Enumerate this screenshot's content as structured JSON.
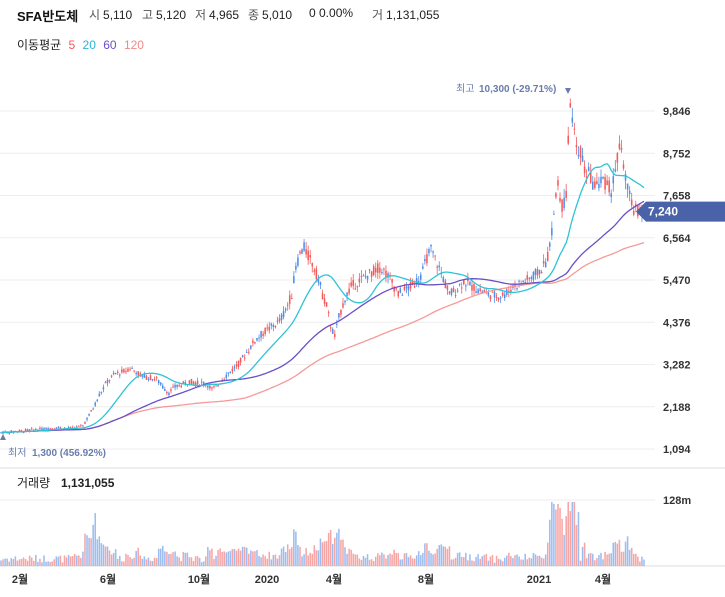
{
  "header": {
    "stock_name": "SFA반도체",
    "open_label": "시",
    "open_value": "5,110",
    "high_label": "고",
    "high_value": "5,120",
    "low_label": "저",
    "low_value": "4,965",
    "close_label": "종",
    "close_value": "5,010",
    "change_value": "0 0.00%",
    "volume_label": "거",
    "volume_value": "1,131,055"
  },
  "ma_legend": {
    "title": "이동평균",
    "items": [
      {
        "label": "5",
        "color": "#f45a5a"
      },
      {
        "label": "20",
        "color": "#29b6d6"
      },
      {
        "label": "60",
        "color": "#6a4fc9"
      },
      {
        "label": "120",
        "color": "#f08a8a"
      }
    ]
  },
  "colors": {
    "up": "#f45a5a",
    "down": "#4d8ee8",
    "ma5": "#f45a5a",
    "ma20": "#2ec4d6",
    "ma60": "#6a4fc9",
    "ma120": "#f59a9a",
    "current_tag": "#4a62a8",
    "annotation": "#6a7cad"
  },
  "chart_data": {
    "type": "candlestick",
    "price_axis": {
      "ticks": [
        "9,846",
        "8,752",
        "7,658",
        "6,564",
        "5,470",
        "4,376",
        "3,282",
        "2,188",
        "1,094"
      ],
      "tick_values": [
        9846,
        8752,
        7658,
        6564,
        5470,
        4376,
        3282,
        2188,
        1094
      ],
      "range": [
        700,
        10500
      ]
    },
    "x_axis": {
      "ticks": [
        "2월",
        "6월",
        "10월",
        "2020",
        "4월",
        "8월",
        "2021",
        "4월"
      ]
    },
    "current_price": {
      "value": 7240,
      "label": "7,240"
    },
    "max_annotation": {
      "label": "최고",
      "value_text": "10,300 (-29.71%)",
      "value": 10300
    },
    "min_annotation": {
      "label": "최저",
      "value_text": "1,300 (456.92%)",
      "value": 1300
    },
    "volume": {
      "title": "거래량",
      "value_text": "1,131,055",
      "axis_tick": "128m",
      "axis_tick_value": 128000000
    },
    "price_path": [
      [
        0,
        1520
      ],
      [
        18,
        1600
      ],
      [
        28,
        1650
      ],
      [
        35,
        1620
      ],
      [
        40,
        1700
      ],
      [
        45,
        2150
      ],
      [
        48,
        2500
      ],
      [
        52,
        2850
      ],
      [
        56,
        3050
      ],
      [
        60,
        3100
      ],
      [
        63,
        3200
      ],
      [
        66,
        3100
      ],
      [
        68,
        3000
      ],
      [
        72,
        2950
      ],
      [
        76,
        2900
      ],
      [
        79,
        2700
      ],
      [
        82,
        2550
      ],
      [
        85,
        2700
      ],
      [
        88,
        2750
      ],
      [
        92,
        2850
      ],
      [
        96,
        2800
      ],
      [
        100,
        2800
      ],
      [
        103,
        2650
      ],
      [
        105,
        2700
      ],
      [
        108,
        2900
      ],
      [
        112,
        3100
      ],
      [
        116,
        3300
      ],
      [
        120,
        3600
      ],
      [
        124,
        3900
      ],
      [
        128,
        4100
      ],
      [
        132,
        4250
      ],
      [
        136,
        4400
      ],
      [
        139,
        4700
      ],
      [
        142,
        5100
      ],
      [
        144,
        5800
      ],
      [
        146,
        6150
      ],
      [
        148,
        6300
      ],
      [
        150,
        6100
      ],
      [
        152,
        5900
      ],
      [
        155,
        5500
      ],
      [
        157,
        5100
      ],
      [
        159,
        4800
      ],
      [
        161,
        4300
      ],
      [
        163,
        4000
      ],
      [
        165,
        4500
      ],
      [
        168,
        5000
      ],
      [
        171,
        5300
      ],
      [
        175,
        5450
      ],
      [
        179,
        5600
      ],
      [
        182,
        5700
      ],
      [
        185,
        5800
      ],
      [
        188,
        5650
      ],
      [
        191,
        5400
      ],
      [
        194,
        5100
      ],
      [
        197,
        5200
      ],
      [
        200,
        5300
      ],
      [
        203,
        5450
      ],
      [
        206,
        5700
      ],
      [
        208,
        6050
      ],
      [
        210,
        6250
      ],
      [
        213,
        5900
      ],
      [
        216,
        5500
      ],
      [
        219,
        5100
      ],
      [
        222,
        5200
      ],
      [
        226,
        5450
      ],
      [
        230,
        5300
      ],
      [
        234,
        5200
      ],
      [
        238,
        5100
      ],
      [
        242,
        5050
      ],
      [
        246,
        5100
      ],
      [
        250,
        5300
      ],
      [
        254,
        5400
      ],
      [
        258,
        5500
      ],
      [
        262,
        5650
      ],
      [
        266,
        5900
      ],
      [
        268,
        6300
      ],
      [
        270,
        7200
      ],
      [
        272,
        8000
      ],
      [
        274,
        7400
      ],
      [
        276,
        7600
      ],
      [
        277,
        9000
      ],
      [
        278,
        10100
      ],
      [
        279,
        9500
      ],
      [
        281,
        8900
      ],
      [
        283,
        8800
      ],
      [
        285,
        8300
      ],
      [
        287,
        8200
      ],
      [
        289,
        8000
      ],
      [
        291,
        7900
      ],
      [
        294,
        8100
      ],
      [
        296,
        7900
      ],
      [
        298,
        7800
      ],
      [
        300,
        8300
      ],
      [
        302,
        8900
      ],
      [
        304,
        8500
      ],
      [
        306,
        7800
      ],
      [
        308,
        7400
      ],
      [
        310,
        7250
      ],
      [
        312,
        7300
      ],
      [
        314,
        7240
      ]
    ]
  }
}
